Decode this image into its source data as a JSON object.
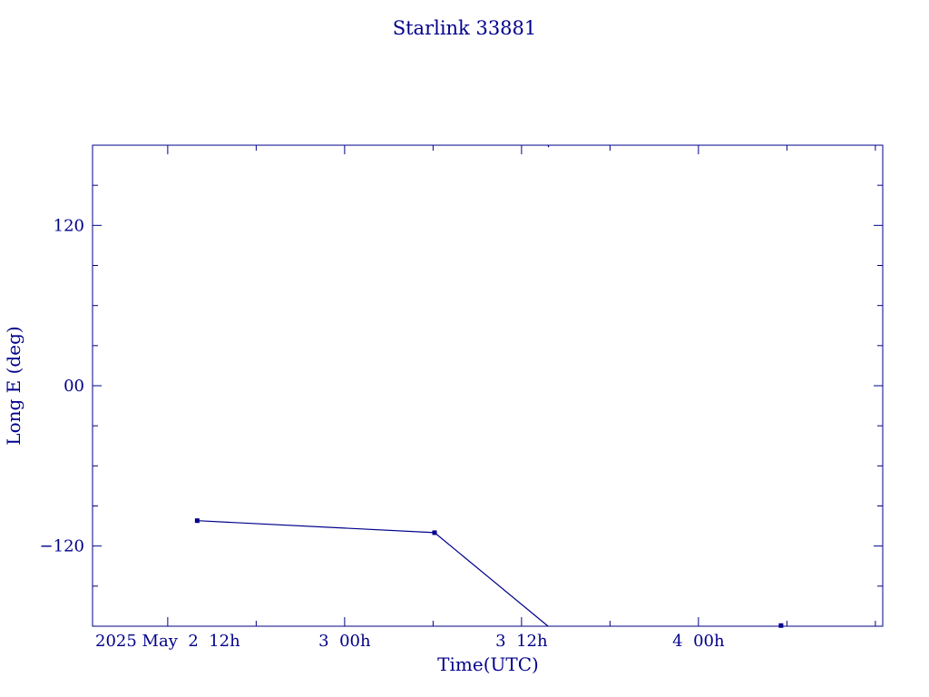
{
  "chart_data": {
    "type": "line",
    "title": "Starlink 33881",
    "xlabel": "Time(UTC)",
    "ylabel": "Long E (deg)",
    "x_unit": "hours since 2025 May 2 00h UTC",
    "xlim": [
      6.9,
      60.5
    ],
    "ylim": [
      -180,
      180
    ],
    "x_ticks": [
      {
        "value": 12,
        "label": "2025 May  2  12h"
      },
      {
        "value": 24,
        "label": "3  00h"
      },
      {
        "value": 36,
        "label": "3  12h"
      },
      {
        "value": 48,
        "label": "4  00h"
      }
    ],
    "y_ticks": [
      {
        "value": 120,
        "label": "120"
      },
      {
        "value": 0,
        "label": "00"
      },
      {
        "value": -120,
        "label": "−120"
      }
    ],
    "segments": [
      {
        "points": [
          [
            14.0,
            -101.0
          ],
          [
            30.1,
            -110.0
          ],
          [
            37.8,
            -180.0
          ]
        ]
      },
      {
        "points": [
          [
            37.8,
            180.0
          ],
          [
            37.85,
            178.5
          ]
        ]
      },
      {
        "points": [
          [
            53.6,
            -180.0
          ],
          [
            53.75,
            -179.5
          ]
        ]
      }
    ],
    "markers": [
      [
        14.0,
        -101.0
      ],
      [
        30.1,
        -110.0
      ],
      [
        53.6,
        -179.5
      ]
    ],
    "grid": false,
    "color": "#00008b"
  }
}
